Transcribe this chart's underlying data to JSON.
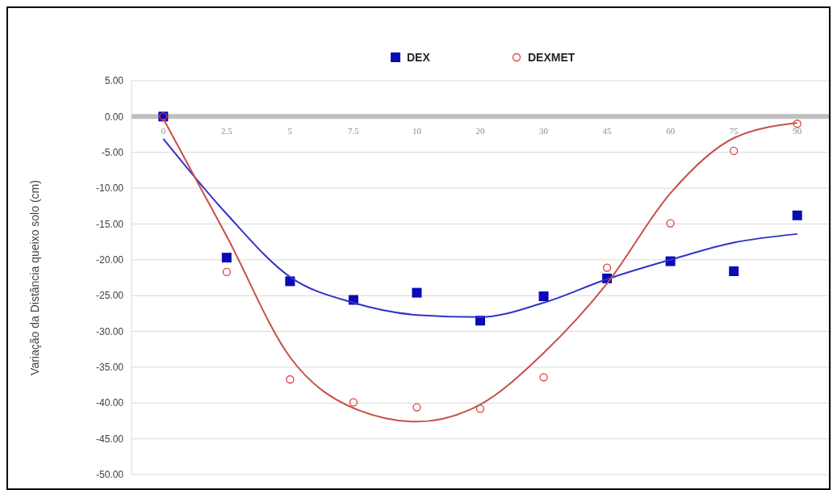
{
  "chart_data": {
    "type": "scatter",
    "ylabel": "Variação da Distância queixo solo (cm)",
    "categories": [
      "0",
      "2.5",
      "5",
      "7.5",
      "10",
      "20",
      "30",
      "45",
      "60",
      "75",
      "90"
    ],
    "series": [
      {
        "name": "DEX",
        "marker": "square",
        "color": "#0a0ab8",
        "values": [
          0,
          -19.7,
          -23,
          -25.6,
          -24.6,
          -28.5,
          -25.1,
          -22.6,
          -20.2,
          -21.6,
          -13.8
        ]
      },
      {
        "name": "DEXMET",
        "marker": "circle",
        "color": "#d9403a",
        "values": [
          0,
          -21.7,
          -36.7,
          -39.9,
          -40.6,
          -40.8,
          -36.4,
          -21.1,
          -14.9,
          -4.8,
          -1.0
        ]
      },
      {
        "type": "line",
        "marker": "none",
        "color": "#3232c8",
        "values": [
          -3.1,
          -13.6,
          -22.4,
          -26,
          -27.7,
          -28,
          -26,
          -22.7,
          -20,
          -17.6,
          -16.4
        ]
      },
      {
        "type": "line",
        "marker": "none",
        "color": "#c8504a",
        "values": [
          -0.3,
          -16.7,
          -33.6,
          -40.7,
          -42.6,
          -40.2,
          -33,
          -23.3,
          -10.7,
          -3,
          -0.9
        ]
      }
    ],
    "ylim": [
      -50,
      5
    ],
    "yticks": [
      {
        "value": 5,
        "label": "5.00"
      },
      {
        "value": 0,
        "label": "0.00"
      },
      {
        "value": -5,
        "label": "-5.00"
      },
      {
        "value": -10,
        "label": "-10.00"
      },
      {
        "value": -15,
        "label": "-15.00"
      },
      {
        "value": -20,
        "label": "-20.00"
      },
      {
        "value": -25,
        "label": "-25.00"
      },
      {
        "value": -30,
        "label": "-30.00"
      },
      {
        "value": -35,
        "label": "-35.00"
      },
      {
        "value": -40,
        "label": "-40.00"
      },
      {
        "value": -45,
        "label": "-45.00"
      },
      {
        "value": -50,
        "label": "-50.00"
      }
    ],
    "grid": "y",
    "legend": "top"
  }
}
